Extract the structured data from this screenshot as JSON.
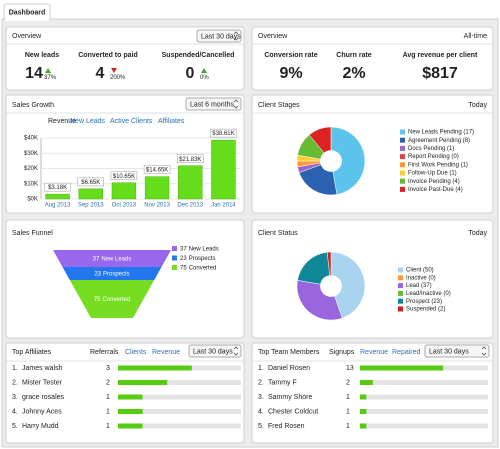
{
  "tab": "Dashboard",
  "overview_left": {
    "title": "Overview",
    "range": "Last 30 days",
    "metrics": [
      {
        "label": "New leads",
        "value": "14",
        "change": "37%",
        "direction": "up"
      },
      {
        "label": "Converted to paid",
        "value": "4",
        "change": "200%",
        "direction": "down"
      },
      {
        "label": "Suspended/Cancelled",
        "value": "0",
        "change": "0%",
        "direction": "up"
      }
    ]
  },
  "overview_right": {
    "title": "Overview",
    "range": "All-time",
    "metrics": [
      {
        "label": "Conversion rate",
        "value": "9%"
      },
      {
        "label": "Churn rate",
        "value": "2%"
      },
      {
        "label": "Avg revenue per client",
        "value": "$817"
      }
    ]
  },
  "sales_growth": {
    "title": "Sales Growth",
    "range": "Last 6 months",
    "tabs": [
      "Revenue",
      "New Leads",
      "Active Clients",
      "Affiliates"
    ],
    "chart_data": {
      "type": "bar",
      "categories": [
        "Aug 2013",
        "Sep 2013",
        "Oct 2013",
        "Nov 2013",
        "Dec 2013",
        "Jan 2014"
      ],
      "values": [
        3.18,
        6.65,
        10.65,
        14.65,
        21.83,
        38.61
      ],
      "value_labels": [
        "$3.18K",
        "$6.65K",
        "$10.65K",
        "$14.65K",
        "$21.83K",
        "$38.61K"
      ],
      "color": "#66dd1a",
      "ylim": [
        0,
        40
      ],
      "yticks": [
        {
          "value": 0,
          "label": "$0K"
        },
        {
          "value": 10,
          "label": "$10K"
        },
        {
          "value": 20,
          "label": "$20K"
        },
        {
          "value": 30,
          "label": "$30K"
        },
        {
          "value": 40,
          "label": "$40K"
        }
      ],
      "grid": true
    }
  },
  "client_stages": {
    "title": "Client Stages",
    "range": "Today",
    "chart_data": {
      "type": "pie",
      "slices": [
        {
          "label": "New Leads Pending (17)",
          "value": 17,
          "color": "#5cc4ec"
        },
        {
          "label": "Agreement Pending (8)",
          "value": 8,
          "color": "#2a62b0"
        },
        {
          "label": "Docs Pending (1)",
          "value": 1,
          "color": "#9966cc"
        },
        {
          "label": "Report Pending (0)",
          "value": 0,
          "color": "#dd4444"
        },
        {
          "label": "First Work Pending (1)",
          "value": 1,
          "color": "#ff9933"
        },
        {
          "label": "Follow-Up Due (1)",
          "value": 1,
          "color": "#ffcc33"
        },
        {
          "label": "Invoice Pending (4)",
          "value": 4,
          "color": "#66bb33"
        },
        {
          "label": "Invoice Past-Due (4)",
          "value": 4,
          "color": "#dd2222"
        }
      ]
    }
  },
  "sales_funnel": {
    "title": "Sales Funnel",
    "chart_data": {
      "type": "funnel",
      "stages": [
        {
          "value": 37,
          "label": "New Leads",
          "color": "#9966ee"
        },
        {
          "value": 23,
          "label": "Prospects",
          "color": "#2277ee"
        },
        {
          "value": 75,
          "label": "Converted",
          "color": "#77dd22"
        }
      ]
    }
  },
  "client_status": {
    "title": "Client Status",
    "range": "Today",
    "chart_data": {
      "type": "pie",
      "slices": [
        {
          "label": "Client (50)",
          "value": 50,
          "color": "#a8d4f0"
        },
        {
          "label": "Inactive (0)",
          "value": 0,
          "color": "#ff9933"
        },
        {
          "label": "Lead (37)",
          "value": 37,
          "color": "#9966dd"
        },
        {
          "label": "Lead/Inactive (0)",
          "value": 0,
          "color": "#66bb33"
        },
        {
          "label": "Prospect (23)",
          "value": 23,
          "color": "#118899"
        },
        {
          "label": "Suspended (2)",
          "value": 2,
          "color": "#cc2222"
        }
      ]
    }
  },
  "top_affiliates": {
    "title": "Top Affiliates",
    "columns": [
      "Referrals",
      "Clients",
      "Revenue"
    ],
    "range": "Last 30 days",
    "xlim": [
      0,
      5
    ],
    "rows": [
      {
        "rank": "1.",
        "name": "James walsh",
        "value": 3
      },
      {
        "rank": "2.",
        "name": "Mister Tester",
        "value": 2
      },
      {
        "rank": "3.",
        "name": "grace rosales",
        "value": 1
      },
      {
        "rank": "4.",
        "name": "Johnny Aces",
        "value": 1
      },
      {
        "rank": "5.",
        "name": "Harry Mudd",
        "value": 1
      }
    ]
  },
  "top_team": {
    "title": "Top Team Members",
    "columns": [
      "Signups",
      "Revenue",
      "Repaired"
    ],
    "range": "Last 30 days",
    "xlim": [
      0,
      20
    ],
    "rows": [
      {
        "rank": "1.",
        "name": "Daniel Rosen",
        "value": 13
      },
      {
        "rank": "2.",
        "name": "Tammy F",
        "value": 2
      },
      {
        "rank": "3.",
        "name": "Sammy Shore",
        "value": 1
      },
      {
        "rank": "4.",
        "name": "Chester Coldcut",
        "value": 1
      },
      {
        "rank": "5.",
        "name": "Fred Rosen",
        "value": 1
      }
    ]
  }
}
